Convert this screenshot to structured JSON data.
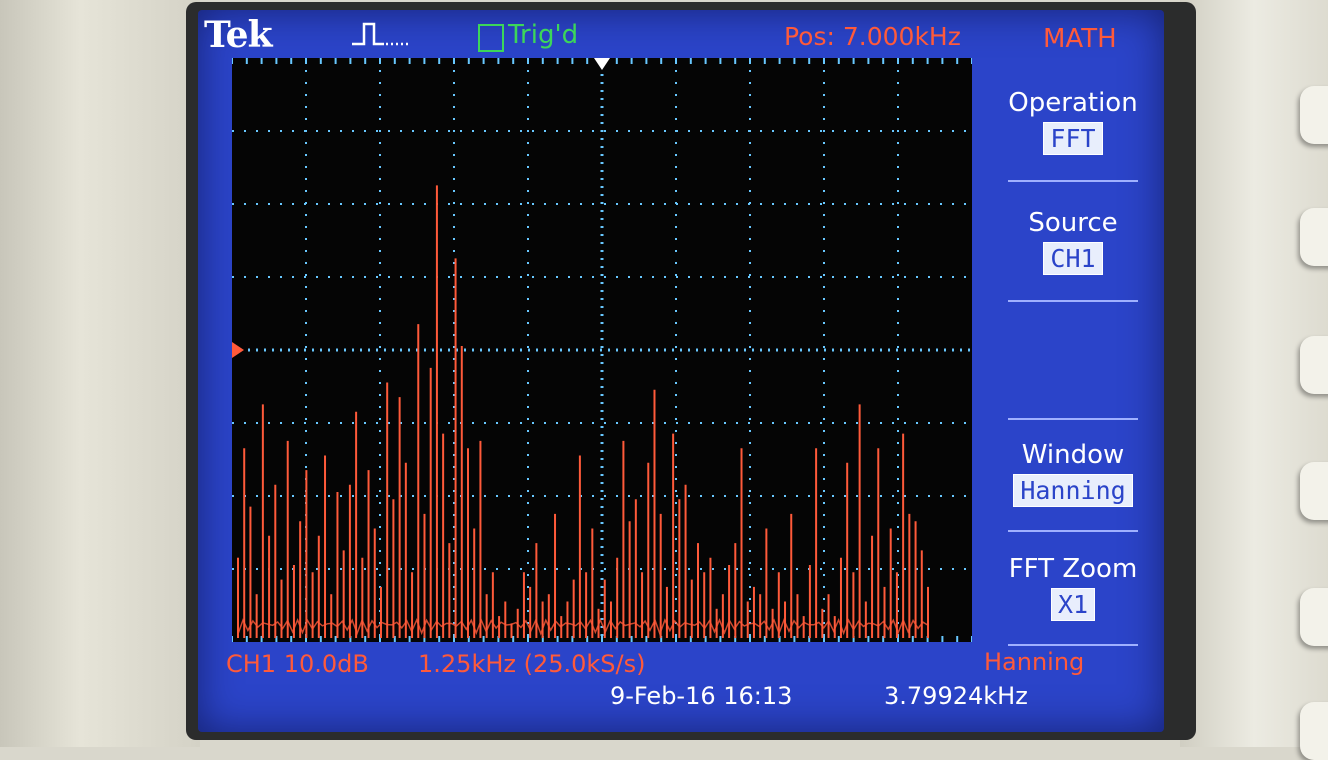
{
  "header": {
    "brand": "Tek",
    "trigger_status": "Trig'd",
    "position": "Pos: 7.000kHz",
    "menu_title": "MATH"
  },
  "side_menu": [
    {
      "label": "Operation",
      "value": "FFT"
    },
    {
      "label": "Source",
      "value": "CH1"
    },
    {
      "label": "Window",
      "value": "Hanning"
    },
    {
      "label": "FFT Zoom",
      "value": "X1"
    }
  ],
  "readouts": {
    "channel_scale": "CH1 10.0dB",
    "timebase": "1.25kHz (25.0kS/s)",
    "window": "Hanning",
    "datetime": "9-Feb-16 16:13",
    "frequency": "3.79924kHz"
  },
  "colors": {
    "screen": "#2b44c9",
    "trace": "#ff5a3a",
    "graticule": "#68c8ff",
    "trigger": "#3cd65a"
  },
  "chart_data": {
    "type": "bar",
    "x_divisions": 10,
    "y_divisions": 8,
    "values": [
      1.1,
      2.6,
      1.8,
      0.6,
      3.2,
      1.4,
      2.1,
      0.8,
      2.7,
      1.0,
      1.6,
      2.3,
      0.9,
      1.4,
      2.5,
      0.6,
      2.0,
      1.2,
      2.1,
      3.1,
      1.1,
      2.3,
      1.5,
      0.7,
      3.5,
      1.9,
      3.3,
      2.4,
      0.9,
      4.3,
      1.7,
      3.7,
      6.2,
      2.8,
      1.3,
      5.2,
      4.0,
      2.6,
      1.5,
      2.7,
      0.6,
      0.9,
      0.3,
      0.5,
      0.2,
      0.4,
      0.9,
      0.7,
      1.3,
      0.5,
      0.6,
      1.7,
      0.3,
      0.5,
      0.8,
      2.5,
      0.9,
      1.5,
      0.4,
      0.8,
      0.5,
      1.1,
      2.7,
      1.6,
      1.9,
      0.9,
      2.4,
      3.4,
      1.7,
      0.7,
      2.8,
      1.9,
      2.1,
      0.8,
      1.3,
      0.9,
      1.1,
      0.4,
      0.6,
      1.0,
      1.3,
      2.6,
      0.5,
      0.7,
      0.6,
      1.5,
      0.4,
      0.9,
      0.5,
      1.7,
      0.6,
      0.3,
      1.0,
      2.6,
      0.4,
      0.6,
      0.3,
      1.1,
      2.4,
      0.9,
      3.2,
      0.5,
      1.4,
      2.6,
      0.7,
      1.5,
      0.9,
      2.8,
      1.7,
      1.6,
      1.2,
      0.7
    ]
  }
}
